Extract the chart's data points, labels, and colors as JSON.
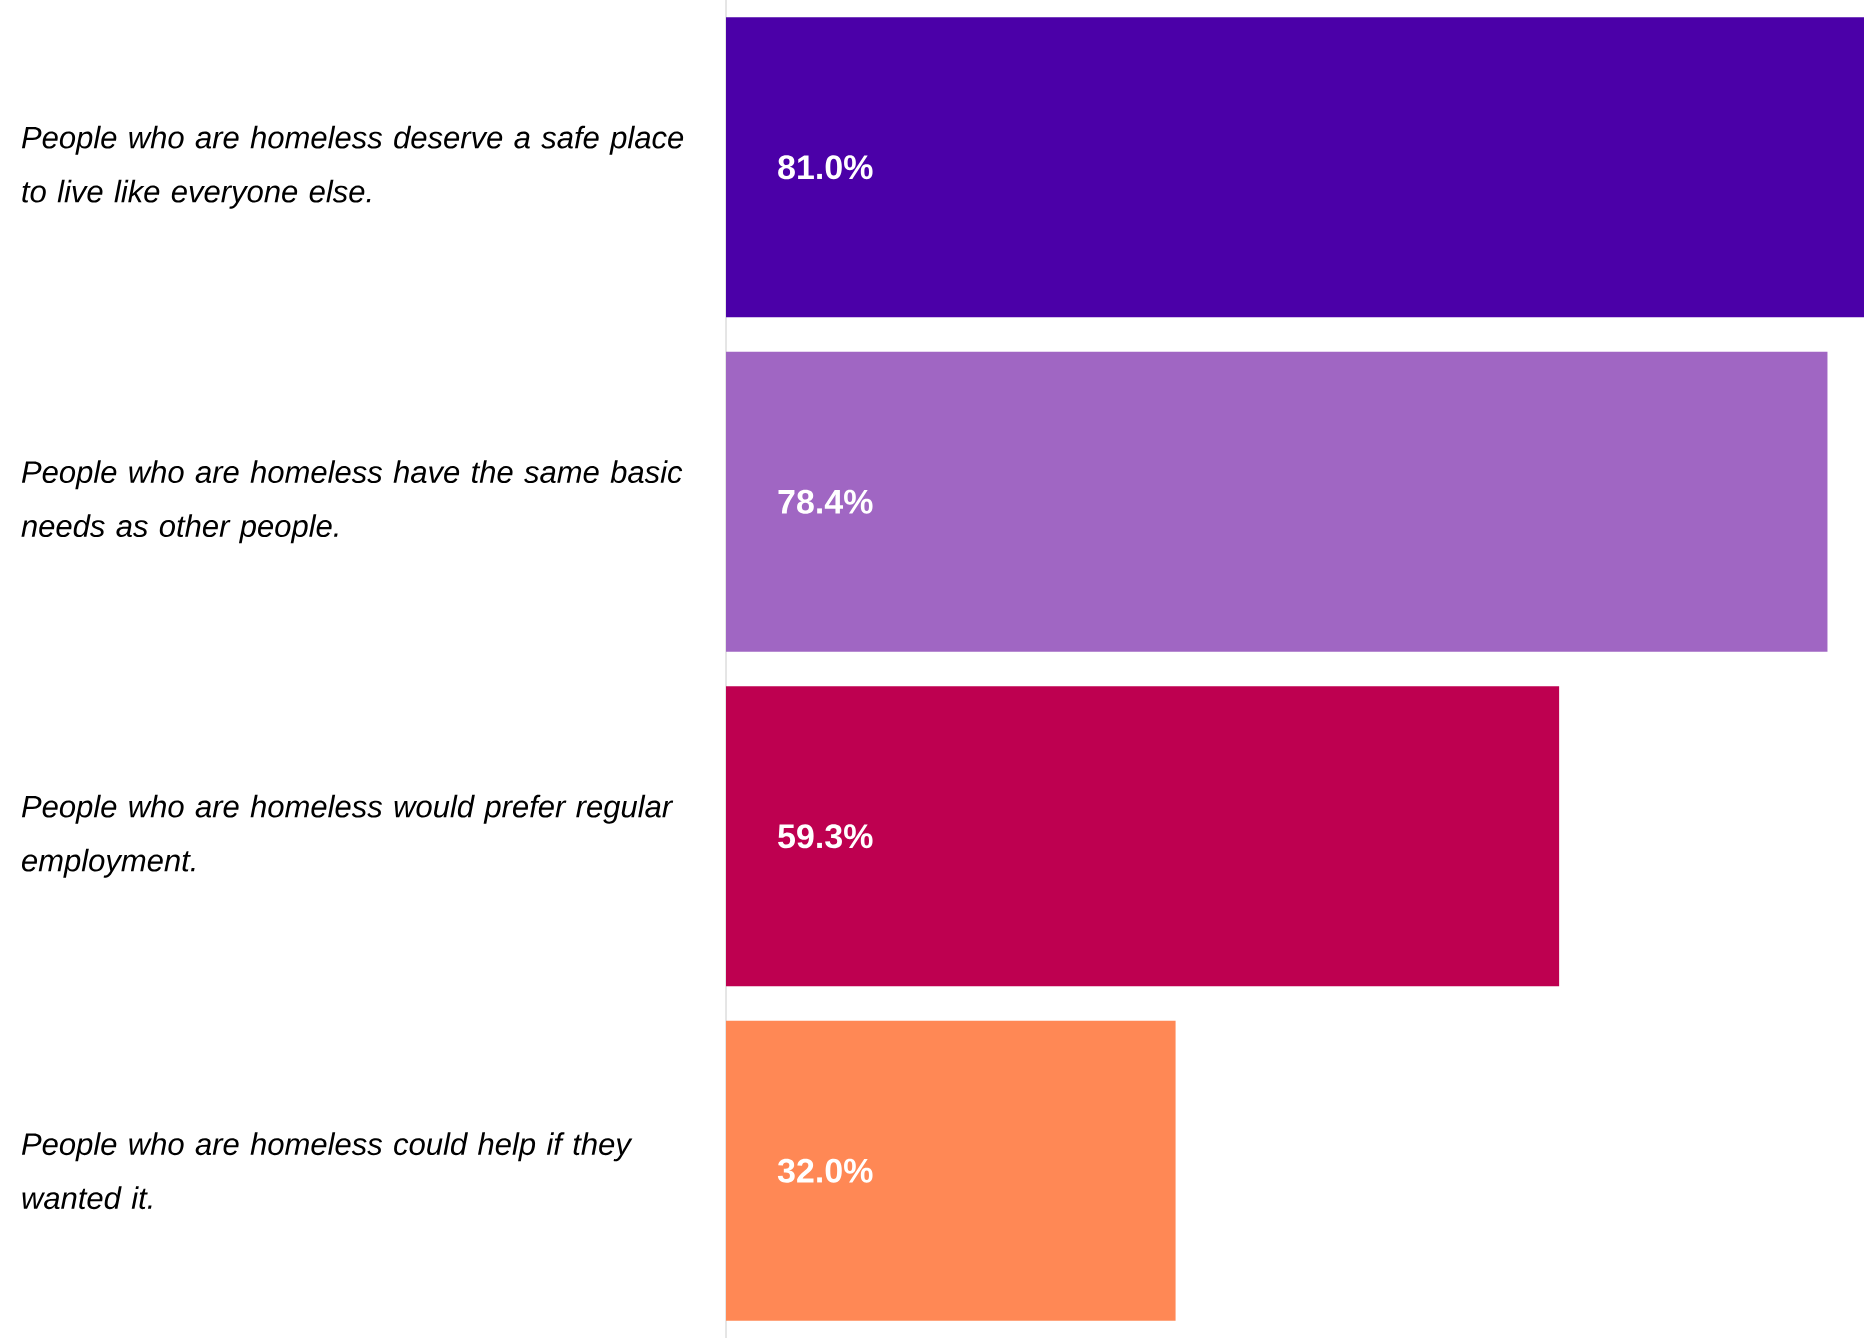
{
  "chart_data": {
    "type": "bar",
    "orientation": "horizontal",
    "categories": [
      "People who are homeless deserve a safe place to live like everyone else.",
      "People who are homeless have the same basic needs as other people.",
      "People who are homeless would prefer regular employment.",
      "People who are homeless could help if they wanted it."
    ],
    "values": [
      81.0,
      78.4,
      59.3,
      32.0
    ],
    "colors": [
      "#4b00a8",
      "#a066c3",
      "#be0050",
      "#ff8855"
    ],
    "value_labels": [
      "81.0%",
      "78.4%",
      "59.3%",
      "32.0%"
    ]
  }
}
